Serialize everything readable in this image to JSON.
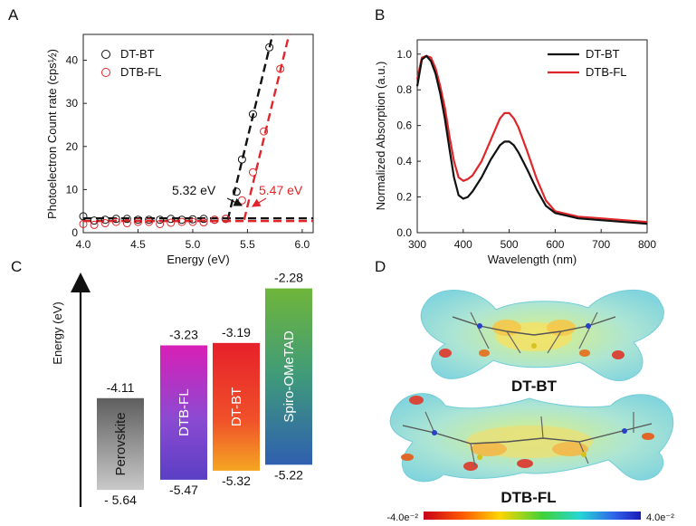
{
  "panel_labels": [
    "A",
    "B",
    "C",
    "D"
  ],
  "colors": {
    "dt_bt": "#111111",
    "dtb_fl": "#e0262a"
  },
  "chart_data": [
    {
      "type": "scatter",
      "panel": "A",
      "xlabel": "Energy (eV)",
      "ylabel": "Photoelectron Count rate (cps½)",
      "xlim": [
        4.0,
        6.1
      ],
      "ylim": [
        0,
        46
      ],
      "xticks": [
        4.0,
        4.5,
        5.0,
        5.5,
        6.0
      ],
      "xtick_labels": [
        "4.0",
        "4.5",
        "5.0",
        "5.5",
        "6.0"
      ],
      "yticks": [
        0,
        10,
        20,
        30,
        40
      ],
      "ytick_labels": [
        "0",
        "10",
        "20",
        "30",
        "40"
      ],
      "legend_position": "top-left",
      "series": [
        {
          "name": "DT-BT",
          "color": "#111111",
          "points": [
            [
              4.0,
              3.8
            ],
            [
              4.1,
              2.8
            ],
            [
              4.2,
              3.0
            ],
            [
              4.3,
              3.2
            ],
            [
              4.4,
              3.2
            ],
            [
              4.5,
              3.0
            ],
            [
              4.6,
              3.0
            ],
            [
              4.7,
              3.0
            ],
            [
              4.8,
              3.2
            ],
            [
              4.9,
              3.0
            ],
            [
              5.0,
              3.1
            ],
            [
              5.1,
              3.2
            ],
            [
              5.2,
              3.0
            ],
            [
              5.3,
              3.2
            ],
            [
              5.4,
              9.5
            ],
            [
              5.45,
              17.0
            ],
            [
              5.55,
              27.5
            ],
            [
              5.7,
              43.0
            ]
          ],
          "baseline": 3.0,
          "fit": [
            [
              5.32,
              3.0
            ],
            [
              5.73,
              46.0
            ]
          ],
          "onset_label": "5.32 eV"
        },
        {
          "name": "DTB-FL",
          "color": "#e0262a",
          "points": [
            [
              4.0,
              2.0
            ],
            [
              4.1,
              1.8
            ],
            [
              4.2,
              2.2
            ],
            [
              4.3,
              2.5
            ],
            [
              4.4,
              2.2
            ],
            [
              4.5,
              2.5
            ],
            [
              4.6,
              2.5
            ],
            [
              4.7,
              2.0
            ],
            [
              4.8,
              2.3
            ],
            [
              4.9,
              2.5
            ],
            [
              5.0,
              2.5
            ],
            [
              5.1,
              2.4
            ],
            [
              5.2,
              3.0
            ],
            [
              5.3,
              3.2
            ],
            [
              5.45,
              7.5
            ],
            [
              5.55,
              14.0
            ],
            [
              5.65,
              23.5
            ],
            [
              5.8,
              38.0
            ]
          ],
          "baseline": 3.0,
          "fit": [
            [
              5.47,
              3.0
            ],
            [
              5.88,
              46.0
            ]
          ],
          "onset_label": "5.47 eV"
        }
      ]
    },
    {
      "type": "line",
      "panel": "B",
      "xlabel": "Wavelength (nm)",
      "ylabel": "Normalized Absorption (a.u.)",
      "xlim": [
        300,
        800
      ],
      "ylim": [
        0.0,
        1.08
      ],
      "xticks": [
        300,
        400,
        500,
        600,
        700,
        800
      ],
      "xtick_labels": [
        "300",
        "400",
        "500",
        "600",
        "700",
        "800"
      ],
      "yticks": [
        0.0,
        0.2,
        0.4,
        0.6,
        0.8,
        1.0
      ],
      "ytick_labels": [
        "0.0",
        "0.2",
        "0.4",
        "0.6",
        "0.8",
        "1.0"
      ],
      "legend_position": "top-right",
      "series": [
        {
          "name": "DT-BT",
          "color": "#111111",
          "x": [
            300,
            310,
            320,
            330,
            340,
            350,
            360,
            370,
            380,
            390,
            400,
            410,
            420,
            440,
            460,
            480,
            490,
            500,
            510,
            520,
            540,
            560,
            580,
            600,
            650,
            700,
            750,
            800
          ],
          "y": [
            0.82,
            0.97,
            0.99,
            0.96,
            0.89,
            0.78,
            0.64,
            0.47,
            0.31,
            0.21,
            0.19,
            0.2,
            0.23,
            0.31,
            0.41,
            0.49,
            0.51,
            0.51,
            0.49,
            0.45,
            0.35,
            0.24,
            0.15,
            0.11,
            0.08,
            0.07,
            0.06,
            0.05
          ]
        },
        {
          "name": "DTB-FL",
          "color": "#e0262a",
          "x": [
            300,
            310,
            320,
            330,
            340,
            350,
            360,
            370,
            380,
            390,
            400,
            410,
            420,
            440,
            460,
            480,
            490,
            500,
            510,
            520,
            540,
            560,
            580,
            600,
            650,
            700,
            750,
            800
          ],
          "y": [
            0.86,
            0.98,
            0.99,
            0.98,
            0.92,
            0.82,
            0.7,
            0.54,
            0.4,
            0.31,
            0.29,
            0.3,
            0.32,
            0.4,
            0.52,
            0.64,
            0.67,
            0.67,
            0.64,
            0.59,
            0.45,
            0.3,
            0.18,
            0.12,
            0.09,
            0.08,
            0.07,
            0.06
          ]
        }
      ]
    },
    {
      "type": "bar",
      "panel": "C",
      "ylabel": "Energy (eV)",
      "categories": [
        "Perovskite",
        "DTB-FL",
        "DT-BT",
        "Spiro-OMeTAD"
      ],
      "top": [
        -4.11,
        -3.23,
        -3.19,
        -2.28
      ],
      "bottom": [
        -5.64,
        -5.47,
        -5.32,
        -5.22
      ],
      "top_labels": [
        "-4.11",
        "-3.23",
        "-3.19",
        "-2.28"
      ],
      "bottom_labels": [
        "- 5.64",
        "-5.47",
        "-5.32",
        "-5.22"
      ]
    }
  ],
  "panel_d": {
    "molecules": [
      "DT-BT",
      "DTB-FL"
    ],
    "colorbar": {
      "min_label": "-4.0e⁻²",
      "max_label": "4.0e⁻²"
    }
  }
}
